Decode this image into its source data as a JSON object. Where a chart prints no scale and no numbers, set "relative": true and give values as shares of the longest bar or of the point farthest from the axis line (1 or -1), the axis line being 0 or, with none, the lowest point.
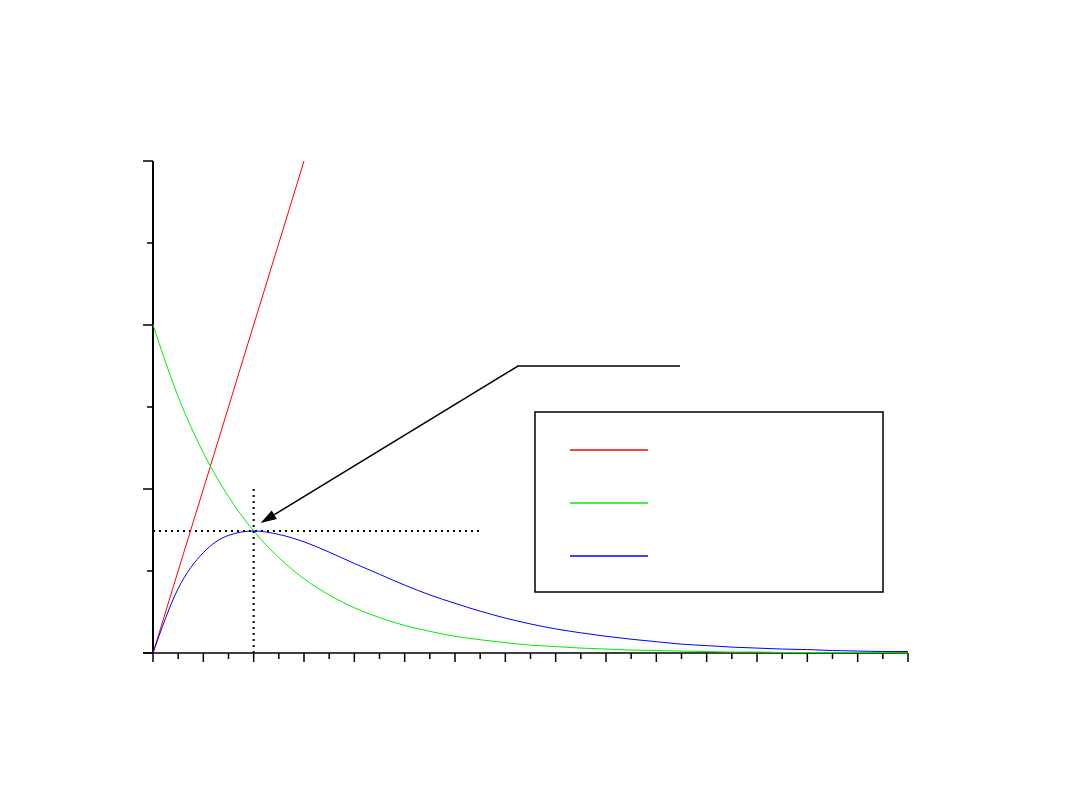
{
  "chart_data": {
    "type": "line",
    "relative": true,
    "line_style": "solid",
    "marker": "none",
    "categories": [
      null,
      null,
      null,
      null,
      null,
      null,
      null,
      null,
      null,
      null,
      null,
      null,
      null,
      null,
      null,
      null,
      null,
      null,
      null,
      null,
      null,
      null,
      null,
      null,
      null,
      null,
      null,
      null,
      null,
      null,
      null
    ],
    "series": [
      {
        "color": "#ff0000",
        "values": [
          0,
          0.167,
          0.333,
          0.5,
          0.667,
          0.833,
          1,
          null,
          null,
          null,
          null,
          null,
          null,
          null,
          null,
          null,
          null,
          null,
          null,
          null,
          null,
          null,
          null,
          null,
          null,
          null,
          null,
          null,
          null,
          null,
          null
        ]
      },
      {
        "color": "#00ee00",
        "values": [
          0.667,
          0.521,
          0.407,
          0.318,
          0.248,
          0.194,
          0.151,
          0.118,
          0.092,
          0.072,
          0.056,
          0.044,
          0.034,
          0.027,
          0.021,
          0.016,
          0.013,
          0.01,
          0.008,
          0.006,
          0.005,
          0.004,
          0.003,
          0.002,
          0.002,
          0.001,
          0.001,
          0.001,
          0.001,
          0.001,
          0
        ]
      },
      {
        "color": "#0000ff",
        "values": [
          0,
          0.131,
          0.204,
          0.239,
          0.248,
          0.241,
          0.226,
          0.205,
          0.182,
          0.16,
          0.138,
          0.118,
          0.101,
          0.085,
          0.071,
          0.059,
          0.049,
          0.041,
          0.034,
          0.028,
          0.023,
          0.018,
          0.015,
          0.012,
          0.01,
          0.008,
          0.007,
          0.005,
          0.004,
          0.003,
          0.003
        ]
      }
    ],
    "ref_lines": [
      {
        "axis": "y",
        "value": 0.248,
        "color": "#000000",
        "line_style": "dotted"
      }
    ]
  }
}
